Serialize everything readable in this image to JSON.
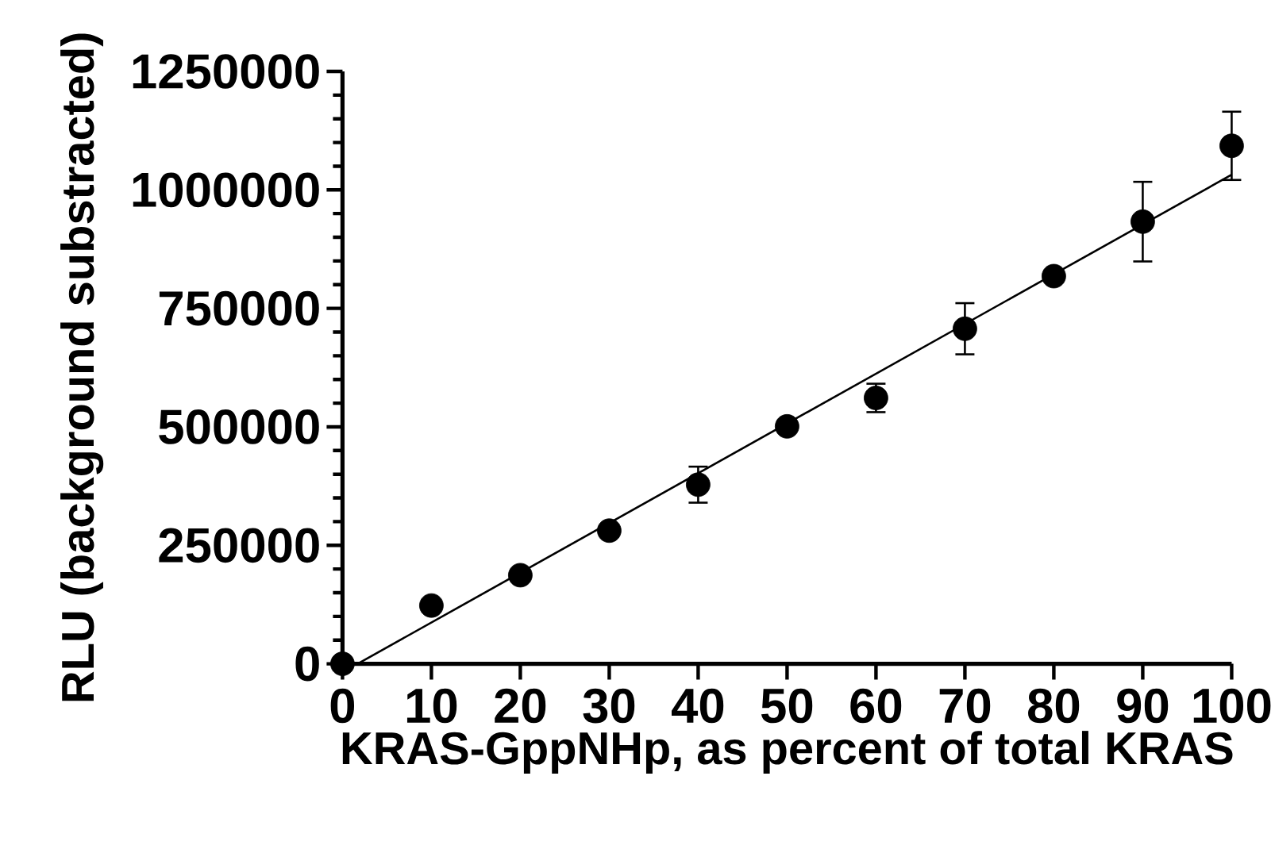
{
  "chart_data": {
    "type": "scatter",
    "xlabel": "KRAS-GppNHp, as percent of total KRAS",
    "ylabel": "RLU  (background substracted)",
    "xlim": [
      0,
      100
    ],
    "xticks": [
      0,
      10,
      20,
      30,
      40,
      50,
      60,
      70,
      80,
      90,
      100
    ],
    "ylim": [
      0,
      1250000
    ],
    "yticks": [
      0,
      250000,
      500000,
      750000,
      1000000,
      1250000
    ],
    "grid": false,
    "series": [
      {
        "color": "#000000",
        "marker": "circle",
        "x": [
          0,
          10,
          20,
          30,
          40,
          50,
          60,
          70,
          80,
          90,
          100
        ],
        "values": [
          0,
          123000,
          187000,
          281000,
          378000,
          501000,
          561000,
          707000,
          818000,
          933000,
          1093000
        ],
        "errors": [
          null,
          null,
          null,
          null,
          38000,
          null,
          30000,
          54000,
          null,
          84000,
          72000
        ]
      },
      {
        "type": "line",
        "color": "#000000",
        "marker": "none",
        "line_style": "solid",
        "x": [
          1.7,
          100
        ],
        "values": [
          0,
          1032000
        ]
      }
    ]
  }
}
